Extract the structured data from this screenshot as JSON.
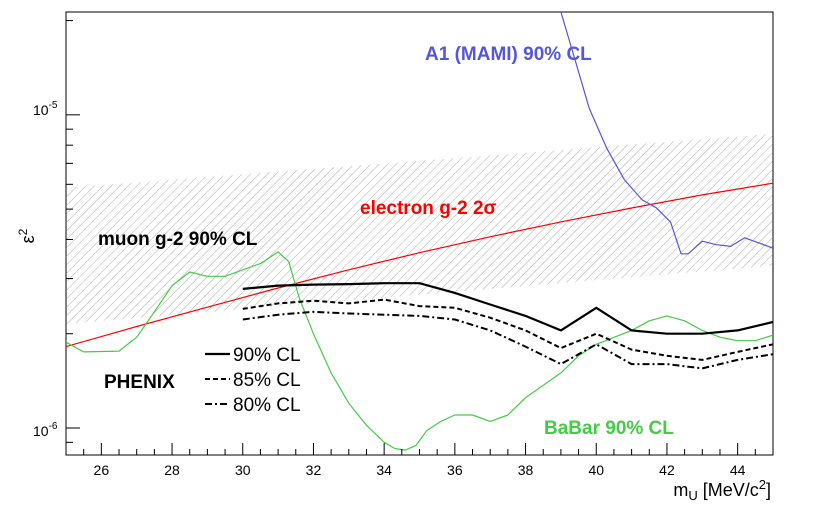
{
  "chart_data": {
    "type": "line",
    "xlabel": "m",
    "xlabel_sub": "U",
    "xlabel_unit": " [MeV/c",
    "xlabel_unit_sup": "2",
    "xlabel_close": "]",
    "ylabel": "ε",
    "ylabel_sup": "2",
    "xlim": [
      25,
      45
    ],
    "ylim": [
      8.2e-07,
      2.13e-05
    ],
    "yscale": "log",
    "x_ticks": [
      26,
      28,
      30,
      32,
      34,
      36,
      38,
      40,
      42,
      44
    ],
    "y_tick_labels": [
      {
        "value": 1e-06,
        "base": "10",
        "exp": "-6"
      },
      {
        "value": 1e-05,
        "base": "10",
        "exp": "-5"
      }
    ],
    "band": {
      "name": "muon g-2 90% CL",
      "x": [
        25,
        45
      ],
      "lower": [
        2.15e-06,
        3.3e-06
      ],
      "upper": [
        5.85e-06,
        8.7e-06
      ],
      "color": "#888888"
    },
    "series": [
      {
        "name": "electron g-2 2σ",
        "color": "#ff0000",
        "width": 1.2,
        "dash": "",
        "x": [
          25,
          27,
          29,
          31,
          33,
          35,
          37,
          39,
          41,
          43,
          45
        ],
        "y": [
          1.82e-06,
          2.11e-06,
          2.43e-06,
          2.8e-06,
          3.2e-06,
          3.63e-06,
          4.08e-06,
          4.55e-06,
          5.04e-06,
          5.55e-06,
          6.05e-06
        ]
      },
      {
        "name": "A1 (MAMI) 90% CL",
        "color": "#5555dd",
        "width": 1.2,
        "dash": "",
        "x": [
          39.0,
          39.4,
          39.8,
          40.3,
          40.8,
          41.3,
          41.7,
          42.1,
          42.4,
          42.6,
          43.0,
          43.4,
          43.8,
          44.2,
          44.6,
          45.0
        ],
        "y": [
          2.13e-05,
          1.5e-05,
          1.05e-05,
          7.8e-06,
          6.2e-06,
          5.35e-06,
          5.05e-06,
          4.55e-06,
          3.6e-06,
          3.6e-06,
          3.95e-06,
          3.85e-06,
          3.8e-06,
          4.05e-06,
          3.9e-06,
          3.75e-06
        ]
      },
      {
        "name": "BaBar 90% CL",
        "color": "#44cc44",
        "width": 1.2,
        "dash": "",
        "x": [
          25,
          25.5,
          26.5,
          27,
          27.5,
          28,
          28.5,
          29,
          29.5,
          30,
          30.5,
          31,
          31.3,
          31.6,
          32,
          32.5,
          33,
          33.5,
          34,
          34.3,
          34.6,
          34.9,
          35.2,
          35.6,
          36,
          36.5,
          37,
          37.5,
          38,
          39,
          39.5,
          40,
          41,
          41.5,
          42,
          42.5,
          43,
          43.5,
          44,
          44.5,
          45
        ],
        "y": [
          1.88e-06,
          1.75e-06,
          1.76e-06,
          1.95e-06,
          2.35e-06,
          2.85e-06,
          3.15e-06,
          3.05e-06,
          3.05e-06,
          3.2e-06,
          3.35e-06,
          3.65e-06,
          3.4e-06,
          2.6e-06,
          2e-06,
          1.5e-06,
          1.2e-06,
          1.02e-06,
          9e-07,
          8.6e-07,
          8.5e-07,
          8.8e-07,
          9.8e-07,
          1.05e-06,
          1.1e-06,
          1.1e-06,
          1.05e-06,
          1.1e-06,
          1.25e-06,
          1.5e-06,
          1.7e-06,
          1.85e-06,
          2.05e-06,
          2.2e-06,
          2.28e-06,
          2.2e-06,
          2.05e-06,
          1.95e-06,
          1.9e-06,
          1.9e-06,
          1.98e-06
        ]
      },
      {
        "name": "PHENIX 90% CL",
        "color": "#000000",
        "width": 2.2,
        "dash": "",
        "x": [
          30,
          31,
          32,
          33,
          34,
          35,
          36,
          37,
          38,
          39,
          40,
          41,
          42,
          43,
          44,
          45
        ],
        "y": [
          2.78e-06,
          2.85e-06,
          2.87e-06,
          2.88e-06,
          2.9e-06,
          2.9e-06,
          2.7e-06,
          2.48e-06,
          2.28e-06,
          2.05e-06,
          2.42e-06,
          2.05e-06,
          2e-06,
          2e-06,
          2.05e-06,
          2.18e-06
        ]
      },
      {
        "name": "PHENIX 85% CL",
        "color": "#000000",
        "width": 2.0,
        "dash": "5,3",
        "x": [
          30,
          31,
          32,
          33,
          34,
          35,
          36,
          37,
          38,
          39,
          40,
          41,
          42,
          43,
          44,
          45
        ],
        "y": [
          2.4e-06,
          2.5e-06,
          2.55e-06,
          2.5e-06,
          2.57e-06,
          2.45e-06,
          2.42e-06,
          2.25e-06,
          2.05e-06,
          1.8e-06,
          2e-06,
          1.78e-06,
          1.7e-06,
          1.65e-06,
          1.75e-06,
          1.85e-06
        ]
      },
      {
        "name": "PHENIX 80% CL",
        "color": "#000000",
        "width": 2.0,
        "dash": "7,3,2,3",
        "x": [
          30,
          31,
          32,
          33,
          34,
          35,
          36,
          37,
          38,
          39,
          40,
          41,
          42,
          43,
          44,
          45
        ],
        "y": [
          2.22e-06,
          2.3e-06,
          2.35e-06,
          2.32e-06,
          2.3e-06,
          2.28e-06,
          2.22e-06,
          2.05e-06,
          1.82e-06,
          1.6e-06,
          1.85e-06,
          1.6e-06,
          1.6e-06,
          1.55e-06,
          1.65e-06,
          1.72e-06
        ]
      }
    ],
    "annotations": [
      {
        "text": "A1 (MAMI) 90% CL",
        "color": "#5555dd"
      },
      {
        "text": "electron g-2 2σ",
        "color": "#ff0000"
      },
      {
        "text": "muon g-2 90% CL",
        "color": "#000000"
      },
      {
        "text": "BaBar 90% CL",
        "color": "#44cc44"
      },
      {
        "text": "PHENIX",
        "color": "#000000"
      }
    ],
    "legend": [
      "90% CL",
      "85% CL",
      "80% CL"
    ]
  }
}
